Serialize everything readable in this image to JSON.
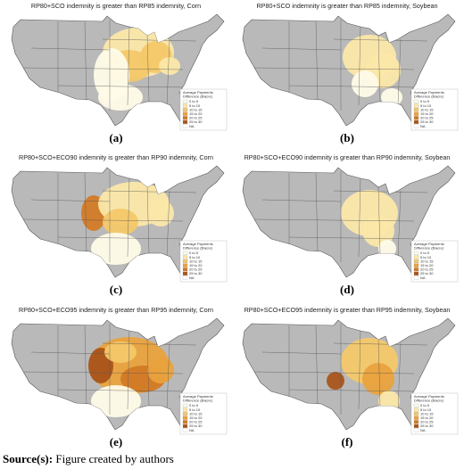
{
  "panels": [
    {
      "title": "RP80+SCO indemnity is greater than RP85 indemnity, Corn",
      "label": "(a)"
    },
    {
      "title": "RP80+SCO indemnity is greater than RP85 indemnity, Soybean",
      "label": "(b)"
    },
    {
      "title": "RP80+SCO+ECO90 indemnity is greater than RP90 indemnity, Corn",
      "label": "(c)"
    },
    {
      "title": "RP80+SCO+ECO90 indemnity is greater than RP90 indemnity, Soybean",
      "label": "(d)"
    },
    {
      "title": "RP80+SCO+ECO95 indemnity is greater than RP95 indemnity, Corn",
      "label": "(e)"
    },
    {
      "title": "RP80+SCO+ECO95 indemnity is greater than RP95 indemnity, Soybean",
      "label": "(f)"
    }
  ],
  "legend": {
    "title": [
      "Average Payments",
      "Difference ($/acre)"
    ],
    "items": [
      "0 to 5",
      "5 to 10",
      "10 to 15",
      "15 to 20",
      "20 to 25",
      "25 to 30",
      "NA"
    ],
    "colors": [
      "#fffbe8",
      "#fbe7a8",
      "#f4c869",
      "#e9a23d",
      "#d27a26",
      "#a9541a",
      "#ffffff"
    ]
  },
  "source": {
    "bold": "Source(s):",
    "text": "Figure created by authors"
  }
}
